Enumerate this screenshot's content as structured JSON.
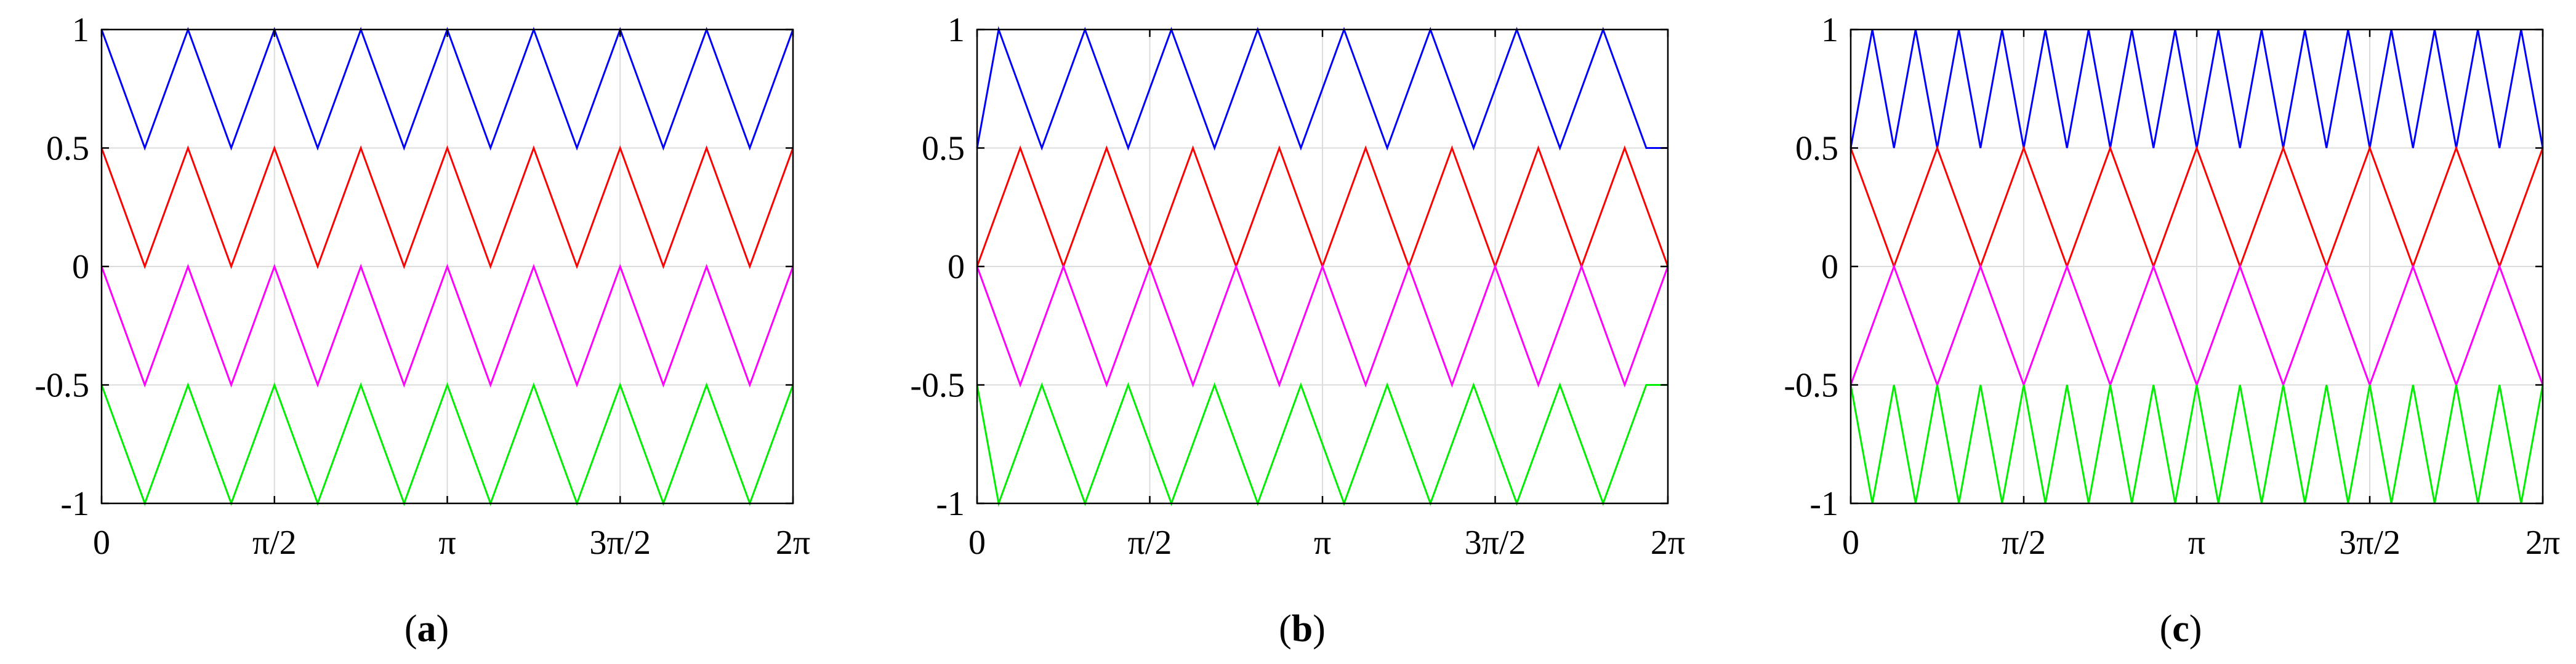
{
  "chart_data": [
    {
      "type": "line",
      "caption": {
        "open": "(",
        "letter": "a",
        "close": ")"
      },
      "x_ticks": [
        "0",
        "π/2",
        "π",
        "3π/2",
        "2π"
      ],
      "y_ticks": [
        "1",
        "0.5",
        "0",
        "-0.5",
        "-1"
      ],
      "xlim": [
        0,
        6.2832
      ],
      "ylim": [
        -1,
        1
      ],
      "grid": true,
      "series": [
        {
          "color": "#0000ff",
          "x": [
            0,
            0.3927,
            0.7854,
            1.1781,
            1.5708,
            1.9635,
            2.3562,
            2.7489,
            3.1416,
            3.5343,
            3.927,
            4.3197,
            4.7124,
            5.1051,
            5.4978,
            5.8905,
            6.2832
          ],
          "values": [
            1,
            0.5,
            1,
            0.5,
            1,
            0.5,
            1,
            0.5,
            1,
            0.5,
            1,
            0.5,
            1,
            0.5,
            1,
            0.5,
            1
          ]
        },
        {
          "color": "#ff0000",
          "x": [
            0,
            0.3927,
            0.7854,
            1.1781,
            1.5708,
            1.9635,
            2.3562,
            2.7489,
            3.1416,
            3.5343,
            3.927,
            4.3197,
            4.7124,
            5.1051,
            5.4978,
            5.8905,
            6.2832
          ],
          "values": [
            0.5,
            0,
            0.5,
            0,
            0.5,
            0,
            0.5,
            0,
            0.5,
            0,
            0.5,
            0,
            0.5,
            0,
            0.5,
            0,
            0.5
          ]
        },
        {
          "color": "#ff00ff",
          "x": [
            0,
            0.3927,
            0.7854,
            1.1781,
            1.5708,
            1.9635,
            2.3562,
            2.7489,
            3.1416,
            3.5343,
            3.927,
            4.3197,
            4.7124,
            5.1051,
            5.4978,
            5.8905,
            6.2832
          ],
          "values": [
            0,
            -0.5,
            0,
            -0.5,
            0,
            -0.5,
            0,
            -0.5,
            0,
            -0.5,
            0,
            -0.5,
            0,
            -0.5,
            0,
            -0.5,
            0
          ]
        },
        {
          "color": "#00ee00",
          "x": [
            0,
            0.3927,
            0.7854,
            1.1781,
            1.5708,
            1.9635,
            2.3562,
            2.7489,
            3.1416,
            3.5343,
            3.927,
            4.3197,
            4.7124,
            5.1051,
            5.4978,
            5.8905,
            6.2832
          ],
          "values": [
            -0.5,
            -1,
            -0.5,
            -1,
            -0.5,
            -1,
            -0.5,
            -1,
            -0.5,
            -1,
            -0.5,
            -1,
            -0.5,
            -1,
            -0.5,
            -1,
            -0.5
          ]
        }
      ]
    },
    {
      "type": "line",
      "caption": {
        "open": "(",
        "letter": "b",
        "close": ")"
      },
      "x_ticks": [
        "0",
        "π/2",
        "π",
        "3π/2",
        "2π"
      ],
      "y_ticks": [
        "1",
        "0.5",
        "0",
        "-0.5",
        "-1"
      ],
      "xlim": [
        0,
        6.2832
      ],
      "ylim": [
        -1,
        1
      ],
      "grid": true,
      "series": [
        {
          "color": "#0000ff",
          "x": [
            0,
            0.1963,
            0.589,
            0.9817,
            1.3744,
            1.7671,
            2.1598,
            2.5525,
            2.9452,
            3.3379,
            3.7306,
            4.1233,
            4.516,
            4.9087,
            5.3014,
            5.6941,
            6.0868,
            6.2832
          ],
          "values": [
            0.5,
            1,
            0.5,
            1,
            0.5,
            1,
            0.5,
            1,
            0.5,
            1,
            0.5,
            1,
            0.5,
            1,
            0.5,
            1,
            0.5,
            0.5
          ]
        },
        {
          "color": "#ff0000",
          "x": [
            0,
            0.3927,
            0.7854,
            1.1781,
            1.5708,
            1.9635,
            2.3562,
            2.7489,
            3.1416,
            3.5343,
            3.927,
            4.3197,
            4.7124,
            5.1051,
            5.4978,
            5.8905,
            6.2832
          ],
          "values": [
            0,
            0.5,
            0,
            0.5,
            0,
            0.5,
            0,
            0.5,
            0,
            0.5,
            0,
            0.5,
            0,
            0.5,
            0,
            0.5,
            0
          ]
        },
        {
          "color": "#ff00ff",
          "x": [
            0,
            0.3927,
            0.7854,
            1.1781,
            1.5708,
            1.9635,
            2.3562,
            2.7489,
            3.1416,
            3.5343,
            3.927,
            4.3197,
            4.7124,
            5.1051,
            5.4978,
            5.8905,
            6.2832
          ],
          "values": [
            0,
            -0.5,
            0,
            -0.5,
            0,
            -0.5,
            0,
            -0.5,
            0,
            -0.5,
            0,
            -0.5,
            0,
            -0.5,
            0,
            -0.5,
            0
          ]
        },
        {
          "color": "#00ee00",
          "x": [
            0,
            0.1963,
            0.589,
            0.9817,
            1.3744,
            1.7671,
            2.1598,
            2.5525,
            2.9452,
            3.3379,
            3.7306,
            4.1233,
            4.516,
            4.9087,
            5.3014,
            5.6941,
            6.0868,
            6.2832
          ],
          "values": [
            -0.5,
            -1,
            -0.5,
            -1,
            -0.5,
            -1,
            -0.5,
            -1,
            -0.5,
            -1,
            -0.5,
            -1,
            -0.5,
            -1,
            -0.5,
            -1,
            -0.5,
            -0.5
          ]
        }
      ]
    },
    {
      "type": "line",
      "caption": {
        "open": "(",
        "letter": "c",
        "close": ")"
      },
      "x_ticks": [
        "0",
        "π/2",
        "π",
        "3π/2",
        "2π"
      ],
      "y_ticks": [
        "1",
        "0.5",
        "0",
        "-0.5",
        "-1"
      ],
      "xlim": [
        0,
        6.2832
      ],
      "ylim": [
        -1,
        1
      ],
      "grid": true,
      "series": [
        {
          "color": "#0000ff",
          "x": [
            0,
            0.1963,
            0.3927,
            0.589,
            0.7854,
            0.9817,
            1.1781,
            1.3744,
            1.5708,
            1.7671,
            1.9635,
            2.1598,
            2.3562,
            2.5525,
            2.7489,
            2.9452,
            3.1416,
            3.3379,
            3.5343,
            3.7306,
            3.927,
            4.1233,
            4.3197,
            4.516,
            4.7124,
            4.9087,
            5.1051,
            5.3014,
            5.4978,
            5.6941,
            5.8905,
            6.0868,
            6.2832
          ],
          "values": [
            0.5,
            1,
            0.5,
            1,
            0.5,
            1,
            0.5,
            1,
            0.5,
            1,
            0.5,
            1,
            0.5,
            1,
            0.5,
            1,
            0.5,
            1,
            0.5,
            1,
            0.5,
            1,
            0.5,
            1,
            0.5,
            1,
            0.5,
            1,
            0.5,
            1,
            0.5,
            1,
            0.5
          ]
        },
        {
          "color": "#ff0000",
          "x": [
            0,
            0.3927,
            0.7854,
            1.1781,
            1.5708,
            1.9635,
            2.3562,
            2.7489,
            3.1416,
            3.5343,
            3.927,
            4.3197,
            4.7124,
            5.1051,
            5.4978,
            5.8905,
            6.2832
          ],
          "values": [
            0.5,
            0,
            0.5,
            0,
            0.5,
            0,
            0.5,
            0,
            0.5,
            0,
            0.5,
            0,
            0.5,
            0,
            0.5,
            0,
            0.5
          ]
        },
        {
          "color": "#ff00ff",
          "x": [
            0,
            0.3927,
            0.7854,
            1.1781,
            1.5708,
            1.9635,
            2.3562,
            2.7489,
            3.1416,
            3.5343,
            3.927,
            4.3197,
            4.7124,
            5.1051,
            5.4978,
            5.8905,
            6.2832
          ],
          "values": [
            -0.5,
            0,
            -0.5,
            0,
            -0.5,
            0,
            -0.5,
            0,
            -0.5,
            0,
            -0.5,
            0,
            -0.5,
            0,
            -0.5,
            0,
            -0.5
          ]
        },
        {
          "color": "#00ee00",
          "x": [
            0,
            0.1963,
            0.3927,
            0.589,
            0.7854,
            0.9817,
            1.1781,
            1.3744,
            1.5708,
            1.7671,
            1.9635,
            2.1598,
            2.3562,
            2.5525,
            2.7489,
            2.9452,
            3.1416,
            3.3379,
            3.5343,
            3.7306,
            3.927,
            4.1233,
            4.3197,
            4.516,
            4.7124,
            4.9087,
            5.1051,
            5.3014,
            5.4978,
            5.6941,
            5.8905,
            6.0868,
            6.2832
          ],
          "values": [
            -0.5,
            -1,
            -0.5,
            -1,
            -0.5,
            -1,
            -0.5,
            -1,
            -0.5,
            -1,
            -0.5,
            -1,
            -0.5,
            -1,
            -0.5,
            -1,
            -0.5,
            -1,
            -0.5,
            -1,
            -0.5,
            -1,
            -0.5,
            -1,
            -0.5,
            -1,
            -0.5,
            -1,
            -0.5,
            -1,
            -0.5,
            -1,
            -0.5
          ]
        }
      ]
    }
  ]
}
